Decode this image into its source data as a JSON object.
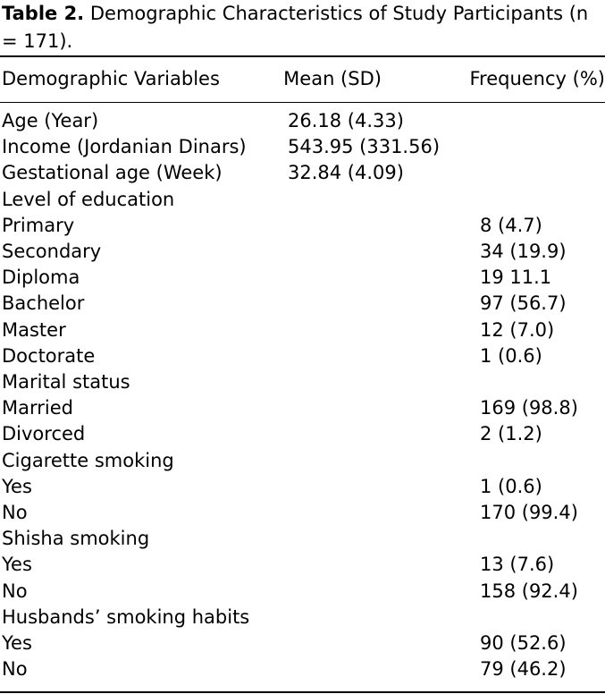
{
  "caption": {
    "label": "Table 2.",
    "text": "Demographic Characteristics of Study Participants (n = 171)."
  },
  "table": {
    "headers": [
      "Demographic Variables",
      "Mean (SD)",
      "Frequency (%)"
    ],
    "rows": [
      [
        "Age (Year)",
        "26.18 (4.33)",
        ""
      ],
      [
        "Income (Jordanian Dinars)",
        "543.95 (331.56)",
        ""
      ],
      [
        "Gestational age (Week)",
        "32.84 (4.09)",
        ""
      ],
      [
        "Level of education",
        "",
        ""
      ],
      [
        "Primary",
        "",
        "8 (4.7)"
      ],
      [
        "Secondary",
        "",
        "34 (19.9)"
      ],
      [
        "Diploma",
        "",
        "19 11.1"
      ],
      [
        "Bachelor",
        "",
        "97 (56.7)"
      ],
      [
        "Master",
        "",
        "12 (7.0)"
      ],
      [
        "Doctorate",
        "",
        "1 (0.6)"
      ],
      [
        "Marital status",
        "",
        ""
      ],
      [
        "Married",
        "",
        "169 (98.8)"
      ],
      [
        "Divorced",
        "",
        "2 (1.2)"
      ],
      [
        "Cigarette smoking",
        "",
        ""
      ],
      [
        "Yes",
        "",
        "1 (0.6)"
      ],
      [
        "No",
        "",
        "170 (99.4)"
      ],
      [
        "Shisha smoking",
        "",
        ""
      ],
      [
        "Yes",
        "",
        "13 (7.6)"
      ],
      [
        "No",
        "",
        "158 (92.4)"
      ],
      [
        "Husbands’ smoking habits",
        "",
        ""
      ],
      [
        "Yes",
        "",
        "90 (52.6)"
      ],
      [
        "No",
        "",
        "79 (46.2)"
      ]
    ]
  }
}
